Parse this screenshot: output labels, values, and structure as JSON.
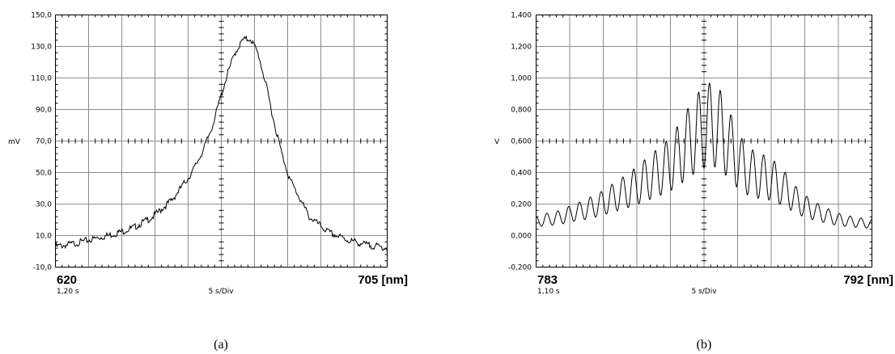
{
  "chart_data": [
    {
      "type": "line",
      "ylabel": "mV",
      "ylim": [
        -10.0,
        150.0
      ],
      "yticks": [
        "150,0",
        "130,0",
        "110,0",
        "90,0",
        "70,0",
        "50,0",
        "30,0",
        "10,0",
        "-10,0"
      ],
      "x_start_label": "620",
      "x_end_label": "705 [nm]",
      "time_label": "1,20 s",
      "div_label": "5 s/Div",
      "caption": "(a)",
      "xlim": [
        620,
        705
      ],
      "series": [
        {
          "x": [
            620,
            625,
            630,
            635,
            640,
            645,
            650,
            655,
            658,
            660,
            662,
            664,
            666,
            668,
            670,
            672,
            674,
            676,
            678,
            680,
            685,
            690,
            695,
            700,
            705
          ],
          "y": [
            3,
            5,
            8,
            11,
            15,
            22,
            33,
            50,
            65,
            78,
            95,
            112,
            126,
            134,
            135,
            125,
            105,
            82,
            62,
            46,
            22,
            12,
            7,
            4,
            2
          ]
        }
      ]
    },
    {
      "type": "line",
      "ylabel": "V",
      "ylim": [
        -0.2,
        1.4
      ],
      "yticks": [
        "1,400",
        "1,200",
        "1,000",
        "0,800",
        "0,600",
        "0,400",
        "0,200",
        "0,000",
        "-0,200"
      ],
      "x_start_label": "783",
      "x_end_label": "792 [nm]",
      "time_label": "1,10 s",
      "div_label": "5 s/Div",
      "caption": "(b)",
      "xlim": [
        783,
        792
      ],
      "series": [
        {
          "x": [
            783.0,
            783.25,
            783.5,
            783.75,
            784.0,
            784.25,
            784.5,
            784.75,
            785.0,
            785.25,
            785.5,
            785.75,
            786.0,
            786.25,
            786.5,
            786.75,
            787.0,
            787.25,
            787.5,
            787.75,
            788.0,
            788.25,
            788.5,
            788.75,
            789.0,
            789.25,
            789.5,
            789.75,
            790.0,
            790.25,
            790.5,
            790.75,
            791.0,
            791.25,
            791.5,
            791.75,
            792.0
          ],
          "y": [
            0.12,
            0.14,
            0.15,
            0.17,
            0.2,
            0.22,
            0.25,
            0.28,
            0.32,
            0.36,
            0.4,
            0.45,
            0.5,
            0.55,
            0.6,
            0.68,
            0.78,
            0.88,
            0.95,
            0.98,
            0.9,
            0.75,
            0.62,
            0.55,
            0.52,
            0.5,
            0.45,
            0.38,
            0.3,
            0.25,
            0.21,
            0.18,
            0.15,
            0.13,
            0.12,
            0.11,
            0.1
          ]
        }
      ]
    }
  ]
}
